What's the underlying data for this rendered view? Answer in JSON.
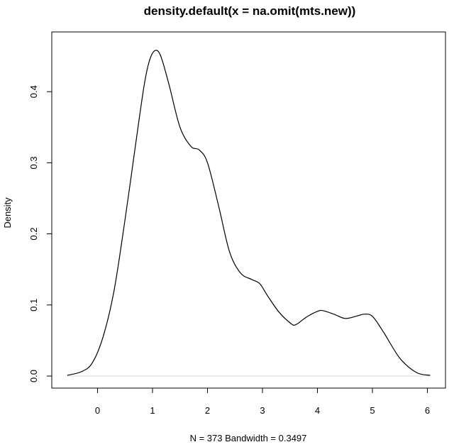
{
  "chart_data": {
    "type": "line",
    "title": "density.default(x = na.omit(mts.new))",
    "xlabel": "N = 373   Bandwidth = 0.3497",
    "ylabel": "Density",
    "xlim": [
      -0.55,
      6.05
    ],
    "ylim": [
      0.0,
      0.458
    ],
    "x_ticks": [
      "0",
      "1",
      "2",
      "3",
      "4",
      "5",
      "6"
    ],
    "y_ticks": [
      "0.0",
      "0.1",
      "0.2",
      "0.3",
      "0.4"
    ],
    "grid": false,
    "legend": "none",
    "line_color": "#000000",
    "zero_line_color": "#d9d9d9",
    "series": [
      {
        "x": [
          -0.55,
          -0.3,
          -0.1,
          0.1,
          0.3,
          0.5,
          0.7,
          0.85,
          0.95,
          1.05,
          1.15,
          1.3,
          1.5,
          1.7,
          1.85,
          2.0,
          2.2,
          2.4,
          2.6,
          2.8,
          2.95,
          3.1,
          3.3,
          3.5,
          3.6,
          3.8,
          4.0,
          4.1,
          4.3,
          4.5,
          4.7,
          4.85,
          5.0,
          5.2,
          5.5,
          5.8,
          6.05
        ],
        "y": [
          0.001,
          0.006,
          0.018,
          0.055,
          0.12,
          0.22,
          0.33,
          0.41,
          0.445,
          0.458,
          0.45,
          0.41,
          0.35,
          0.323,
          0.318,
          0.3,
          0.24,
          0.175,
          0.145,
          0.136,
          0.13,
          0.112,
          0.09,
          0.075,
          0.072,
          0.083,
          0.091,
          0.092,
          0.087,
          0.081,
          0.084,
          0.087,
          0.084,
          0.062,
          0.025,
          0.005,
          0.001
        ]
      }
    ]
  }
}
